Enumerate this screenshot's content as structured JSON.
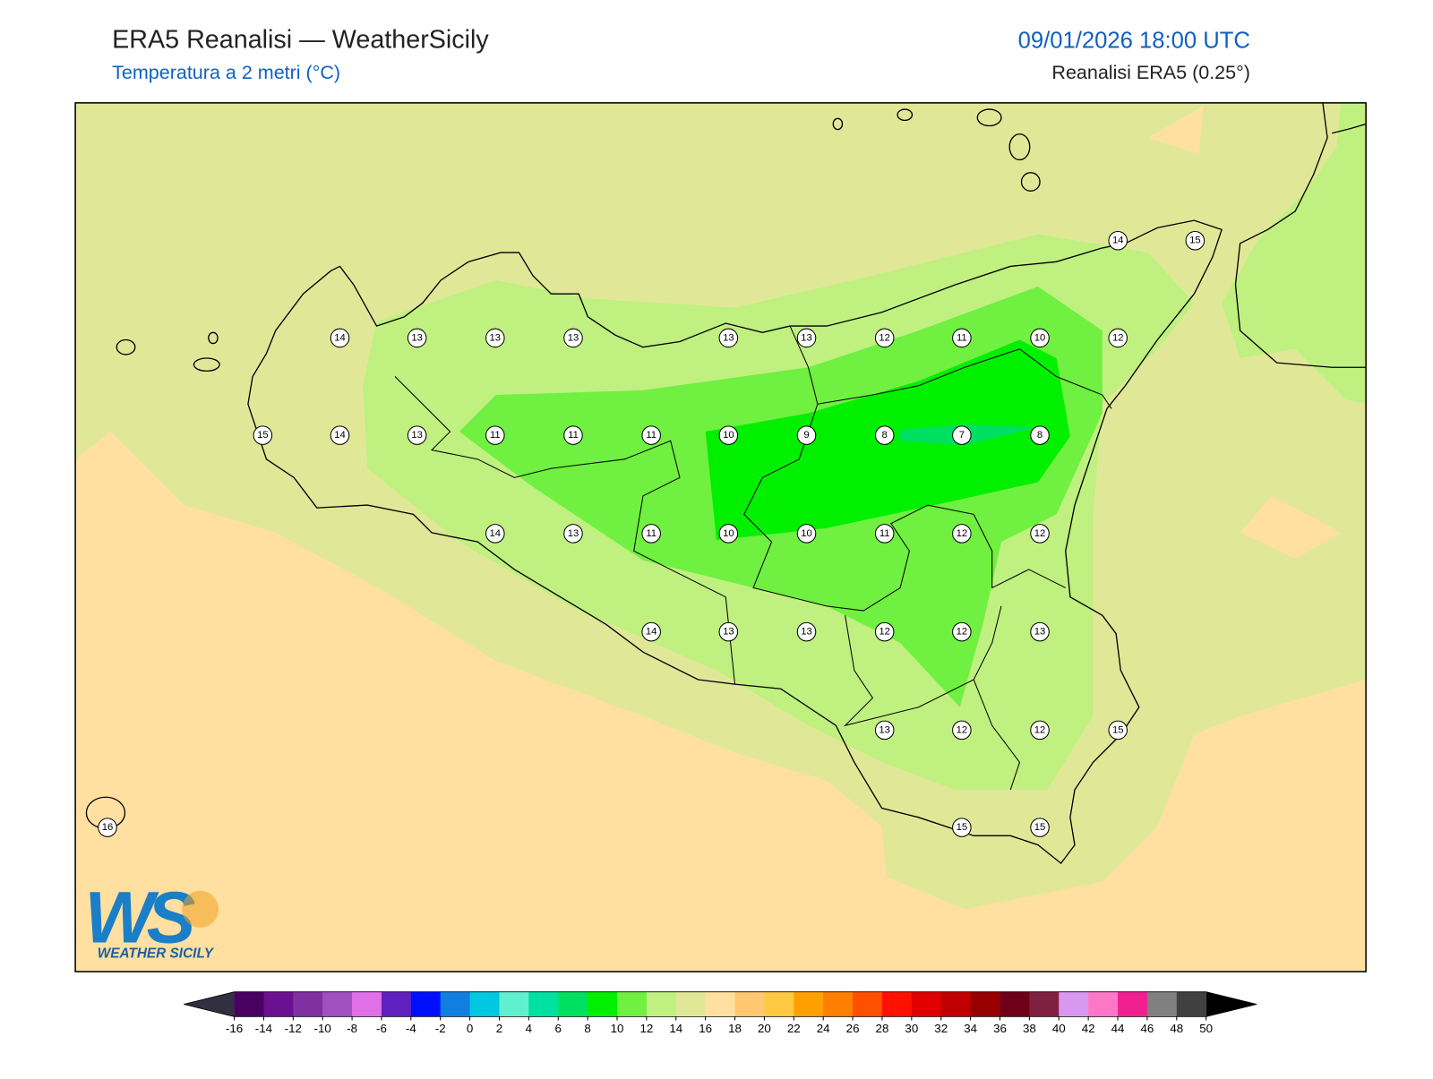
{
  "header": {
    "title": "ERA5 Reanalisi — WeatherSicily",
    "subtitle": "Temperatura a 2 metri (°C)",
    "datetime": "09/01/2026 18:00 UTC",
    "source": "Reanalisi ERA5 (0.25°)"
  },
  "map": {
    "points": [
      14,
      15,
      14,
      13,
      13,
      13,
      13,
      13,
      12,
      11,
      10,
      12,
      15,
      14,
      13,
      11,
      11,
      11,
      10,
      9,
      8,
      7,
      8,
      14,
      13,
      11,
      10,
      10,
      11,
      12,
      12,
      14,
      13,
      13,
      12,
      12,
      13,
      13,
      12,
      12,
      15,
      16,
      15,
      15
    ]
  },
  "colorbar": {
    "ticks": [
      -16,
      -14,
      -12,
      -10,
      -8,
      -6,
      -4,
      -2,
      0,
      2,
      4,
      6,
      8,
      10,
      12,
      14,
      16,
      18,
      20,
      22,
      24,
      26,
      28,
      30,
      32,
      34,
      36,
      38,
      40,
      42,
      44,
      46,
      48,
      50
    ],
    "colors": [
      "#4a0060",
      "#6a1090",
      "#8030a0",
      "#a050c0",
      "#e070e8",
      "#6020c0",
      "#0010ff",
      "#1080e0",
      "#00c8e0",
      "#60f0d0",
      "#00e0a0",
      "#00e060",
      "#00f000",
      "#70f040",
      "#c0f080",
      "#e0e898",
      "#ffe0a0",
      "#ffc870",
      "#ffc840",
      "#ffa000",
      "#ff8000",
      "#ff5000",
      "#ff1000",
      "#e00000",
      "#c00000",
      "#980000",
      "#700018",
      "#802040",
      "#d898f0",
      "#ff78c8",
      "#f02090",
      "#808080",
      "#404040"
    ],
    "under_color": "#303040",
    "over_color": "#000000"
  },
  "logo": {
    "initials": "WS",
    "name": "WEATHER SICILY"
  }
}
